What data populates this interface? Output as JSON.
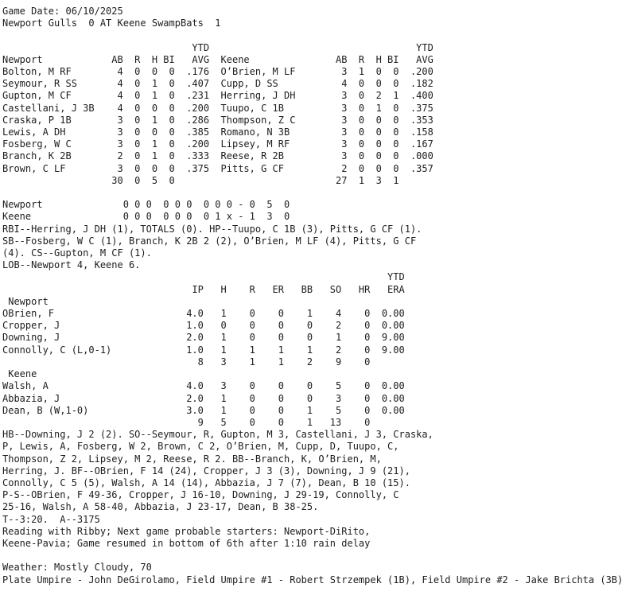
{
  "colors": {
    "text": "#1d1d1f",
    "background": "#ffffff"
  },
  "header": {
    "game_date_label": "Game Date:",
    "game_date": "06/10/2025",
    "away_team": "Newport Gulls",
    "away_score": "0",
    "separator": "AT",
    "home_team": "Keene SwampBats",
    "home_score": "1"
  },
  "batting": {
    "ytd_label": "YTD",
    "stat_columns": [
      "AB",
      "R",
      "H",
      "BI"
    ],
    "avg_column": "AVG",
    "away": {
      "team": "Newport",
      "players": [
        {
          "name": "Bolton, M RF",
          "stats": [
            "4",
            "0",
            "0",
            "0"
          ],
          "avg": ".176"
        },
        {
          "name": "Seymour, R SS",
          "stats": [
            "4",
            "0",
            "1",
            "0"
          ],
          "avg": ".407"
        },
        {
          "name": "Gupton, M CF",
          "stats": [
            "4",
            "0",
            "1",
            "0"
          ],
          "avg": ".231"
        },
        {
          "name": "Castellani, J 3B",
          "stats": [
            "4",
            "0",
            "0",
            "0"
          ],
          "avg": ".200"
        },
        {
          "name": "Craska, P 1B",
          "stats": [
            "3",
            "0",
            "1",
            "0"
          ],
          "avg": ".286"
        },
        {
          "name": "Lewis, A DH",
          "stats": [
            "3",
            "0",
            "0",
            "0"
          ],
          "avg": ".385"
        },
        {
          "name": "Fosberg, W C",
          "stats": [
            "3",
            "0",
            "1",
            "0"
          ],
          "avg": ".200"
        },
        {
          "name": "Branch, K 2B",
          "stats": [
            "2",
            "0",
            "1",
            "0"
          ],
          "avg": ".333"
        },
        {
          "name": "Brown, C LF",
          "stats": [
            "3",
            "0",
            "0",
            "0"
          ],
          "avg": ".375"
        }
      ],
      "totals": [
        "30",
        "0",
        "5",
        "0"
      ]
    },
    "home": {
      "team": "Keene",
      "players": [
        {
          "name": "O’Brien, M LF",
          "stats": [
            "3",
            "1",
            "0",
            "0"
          ],
          "avg": ".200"
        },
        {
          "name": "Cupp, D SS",
          "stats": [
            "4",
            "0",
            "0",
            "0"
          ],
          "avg": ".182"
        },
        {
          "name": "Herring, J DH",
          "stats": [
            "3",
            "0",
            "2",
            "1"
          ],
          "avg": ".400"
        },
        {
          "name": "Tuupo, C 1B",
          "stats": [
            "3",
            "0",
            "1",
            "0"
          ],
          "avg": ".375"
        },
        {
          "name": "Thompson, Z C",
          "stats": [
            "3",
            "0",
            "0",
            "0"
          ],
          "avg": ".353"
        },
        {
          "name": "Romano, N 3B",
          "stats": [
            "3",
            "0",
            "0",
            "0"
          ],
          "avg": ".158"
        },
        {
          "name": "Lipsey, M RF",
          "stats": [
            "3",
            "0",
            "0",
            "0"
          ],
          "avg": ".167"
        },
        {
          "name": "Reese, R 2B",
          "stats": [
            "3",
            "0",
            "0",
            "0"
          ],
          "avg": ".000"
        },
        {
          "name": "Pitts, G CF",
          "stats": [
            "2",
            "0",
            "0",
            "0"
          ],
          "avg": ".357"
        }
      ],
      "totals": [
        "27",
        "1",
        "3",
        "1"
      ]
    }
  },
  "line_score": {
    "away": {
      "team": "Newport",
      "innings": [
        "0",
        "0",
        "0",
        "0",
        "0",
        "0",
        "0",
        "0",
        "0"
      ],
      "runs": "0",
      "hits": "5",
      "errors": "0"
    },
    "home": {
      "team": "Keene",
      "innings": [
        "0",
        "0",
        "0",
        "0",
        "0",
        "0",
        "0",
        "1",
        "x"
      ],
      "runs": "1",
      "hits": "3",
      "errors": "0"
    }
  },
  "batting_notes": [
    "RBI--Herring, J DH (1), TOTALS (0). HP--Tuupo, C 1B (3), Pitts, G CF (1).",
    "SB--Fosberg, W C (1), Branch, K 2B 2 (2), O’Brien, M LF (4), Pitts, G CF",
    "(4). CS--Gupton, M CF (1).",
    "LOB--Newport 4, Keene 6."
  ],
  "pitching": {
    "ytd_label": "YTD",
    "stat_columns": [
      "IP",
      "H",
      "R",
      "ER",
      "BB",
      "SO",
      "HR"
    ],
    "era_column": "ERA",
    "away": {
      "team": "Newport",
      "pitchers": [
        {
          "name": "OBrien, F",
          "stats": [
            "4.0",
            "1",
            "0",
            "0",
            "1",
            "4",
            "0"
          ],
          "era": "0.00"
        },
        {
          "name": "Cropper, J",
          "stats": [
            "1.0",
            "0",
            "0",
            "0",
            "0",
            "2",
            "0"
          ],
          "era": "0.00"
        },
        {
          "name": "Downing, J",
          "stats": [
            "2.0",
            "1",
            "0",
            "0",
            "0",
            "1",
            "0"
          ],
          "era": "9.00"
        },
        {
          "name": "Connolly, C (L,0-1)",
          "stats": [
            "1.0",
            "1",
            "1",
            "1",
            "1",
            "2",
            "0"
          ],
          "era": "9.00"
        }
      ],
      "totals": [
        "8",
        "3",
        "1",
        "1",
        "2",
        "9",
        "0"
      ]
    },
    "home": {
      "team": "Keene",
      "pitchers": [
        {
          "name": "Walsh, A",
          "stats": [
            "4.0",
            "3",
            "0",
            "0",
            "0",
            "5",
            "0"
          ],
          "era": "0.00"
        },
        {
          "name": "Abbazia, J",
          "stats": [
            "2.0",
            "1",
            "0",
            "0",
            "0",
            "3",
            "0"
          ],
          "era": "0.00"
        },
        {
          "name": "Dean, B (W,1-0)",
          "stats": [
            "3.0",
            "1",
            "0",
            "0",
            "1",
            "5",
            "0"
          ],
          "era": "0.00"
        }
      ],
      "totals": [
        "9",
        "5",
        "0",
        "0",
        "1",
        "13",
        "0"
      ]
    }
  },
  "game_notes": [
    "HB--Downing, J 2 (2). SO--Seymour, R, Gupton, M 3, Castellani, J 3, Craska,",
    "P, Lewis, A, Fosberg, W 2, Brown, C 2, O’Brien, M, Cupp, D, Tuupo, C,",
    "Thompson, Z 2, Lipsey, M 2, Reese, R 2. BB--Branch, K, O’Brien, M,",
    "Herring, J. BF--OBrien, F 14 (24), Cropper, J 3 (3), Downing, J 9 (21),",
    "Connolly, C 5 (5), Walsh, A 14 (14), Abbazia, J 7 (7), Dean, B 10 (15).",
    "P-S--OBrien, F 49-36, Cropper, J 16-10, Downing, J 29-19, Connolly, C",
    "25-16, Walsh, A 58-40, Abbazia, J 23-17, Dean, B 38-25.",
    "T--3:20.  A--3175",
    "Reading with Ribby; Next game probable starters: Newport-DiRito,",
    "Keene-Pavia; Game resumed in bottom of 6th after 1:10 rain delay"
  ],
  "footer": {
    "weather": "Weather: Mostly Cloudy, 70",
    "umpires": "Plate Umpire - John DeGirolamo, Field Umpire #1 - Robert Strzempek (1B), Field Umpire #2 - Jake Brichta (3B)"
  }
}
